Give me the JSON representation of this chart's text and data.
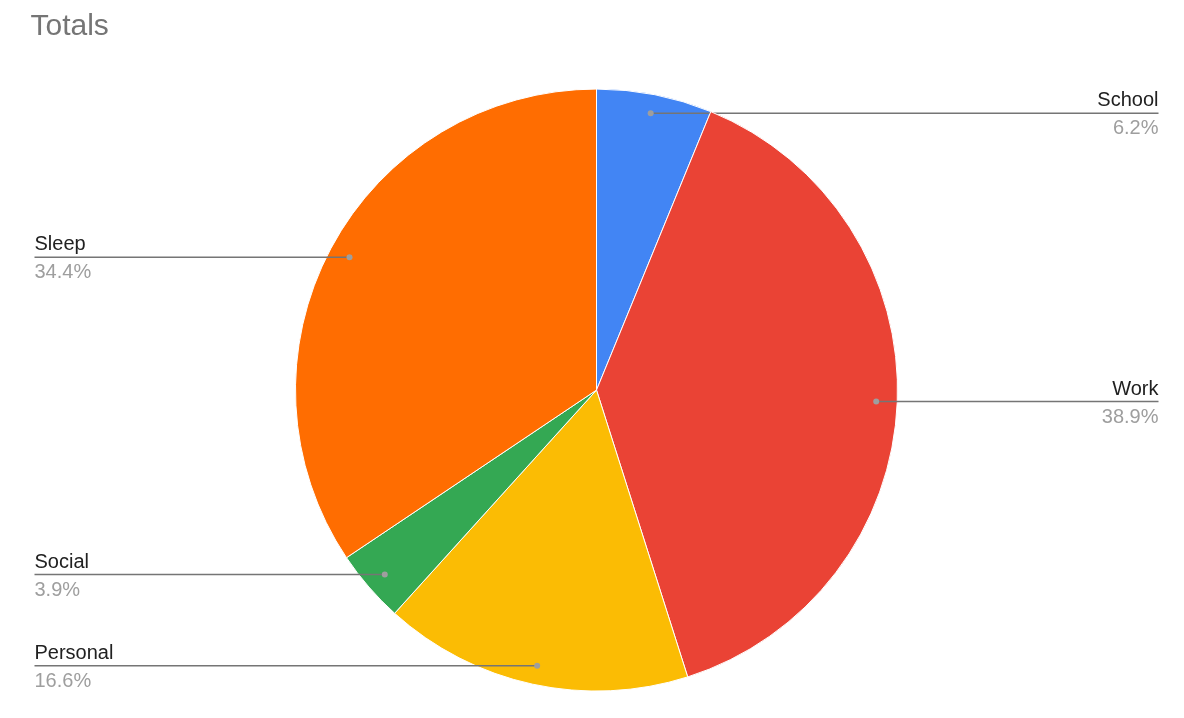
{
  "chart_data": {
    "type": "pie",
    "title": "Totals",
    "categories": [
      "School",
      "Work",
      "Personal",
      "Social",
      "Sleep"
    ],
    "values": [
      6.2,
      38.9,
      16.6,
      3.9,
      34.4
    ],
    "colors": [
      "#4285f4",
      "#ea4335",
      "#fbbc04",
      "#34a853",
      "#ff6d01"
    ],
    "value_labels": [
      "6.2%",
      "38.9%",
      "16.6%",
      "3.9%",
      "34.4%"
    ],
    "legend": false
  }
}
